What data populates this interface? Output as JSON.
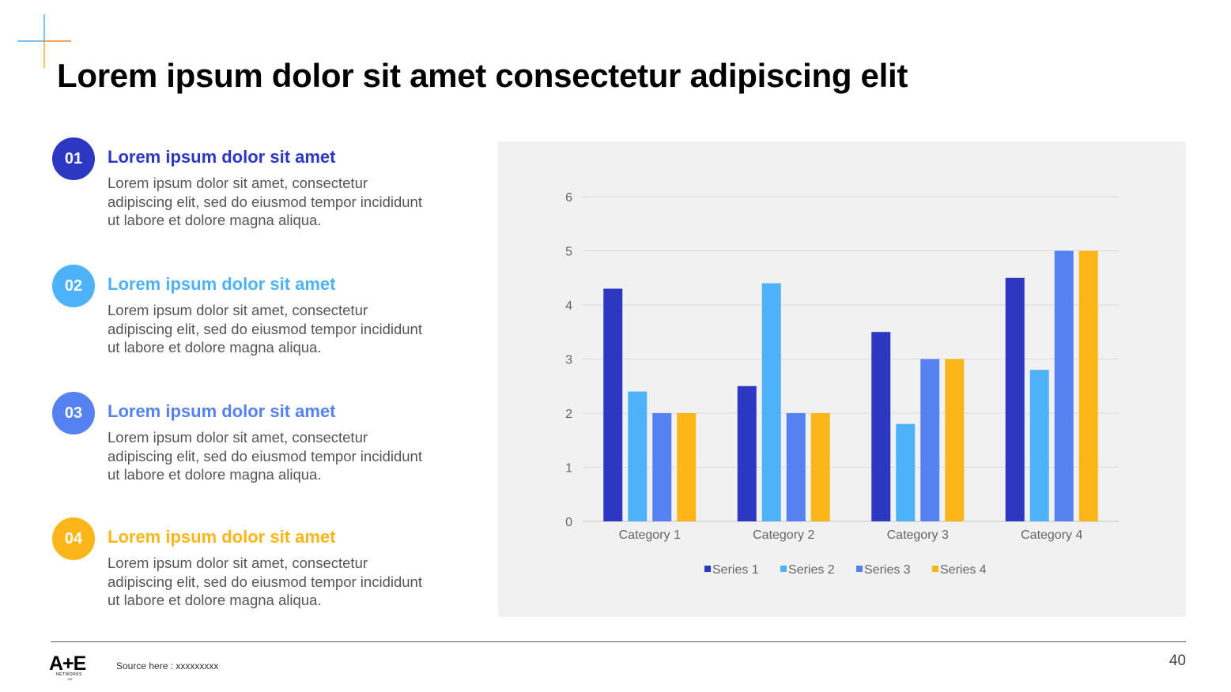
{
  "page": {
    "title": "Lorem ipsum dolor sit amet consectetur adipiscing elit",
    "page_number": "40",
    "source": "Source here : xxxxxxxxx",
    "logo": {
      "text": "A+E",
      "sub": "NETWORKS",
      "sub2": "UK"
    }
  },
  "colors": {
    "series1": "#2c37c2",
    "series2": "#4db2f7",
    "series3": "#5681f0",
    "series4": "#fdb61a",
    "gridline": "#dcdcdc",
    "axis_text": "#666666"
  },
  "items": [
    {
      "number": "01",
      "heading": "Lorem ipsum dolor sit amet",
      "body": "Lorem ipsum dolor sit amet, consectetur adipiscing elit, sed do eiusmod tempor incididunt ut labore et dolore magna aliqua.",
      "color": "#2c37c2"
    },
    {
      "number": "02",
      "heading": "Lorem ipsum dolor sit amet",
      "body": "Lorem ipsum dolor sit amet, consectetur adipiscing elit, sed do eiusmod tempor incididunt ut labore et dolore magna aliqua.",
      "color": "#4db2f7"
    },
    {
      "number": "03",
      "heading": "Lorem ipsum dolor sit amet",
      "body": "Lorem ipsum dolor sit amet, consectetur adipiscing elit, sed do eiusmod tempor incididunt ut labore et dolore magna aliqua.",
      "color": "#5681f0"
    },
    {
      "number": "04",
      "heading": "Lorem ipsum dolor sit amet",
      "body": "Lorem ipsum dolor sit amet, consectetur adipiscing elit, sed do eiusmod tempor incididunt ut labore et dolore magna aliqua.",
      "color": "#fdb61a"
    }
  ],
  "chart_data": {
    "type": "bar",
    "title": "",
    "xlabel": "",
    "ylabel": "",
    "categories": [
      "Category 1",
      "Category 2",
      "Category 3",
      "Category 4"
    ],
    "series": [
      {
        "name": "Series 1",
        "values": [
          4.3,
          2.5,
          3.5,
          4.5
        ]
      },
      {
        "name": "Series 2",
        "values": [
          2.4,
          4.4,
          1.8,
          2.8
        ]
      },
      {
        "name": "Series 3",
        "values": [
          2,
          2,
          3,
          5
        ]
      },
      {
        "name": "Series 4",
        "values": [
          2,
          2,
          3,
          5
        ]
      }
    ],
    "ylim": [
      0,
      6
    ],
    "yticks": [
      "0",
      "1",
      "2",
      "3",
      "4",
      "5",
      "6"
    ],
    "grid": true,
    "legend_position": "bottom"
  }
}
